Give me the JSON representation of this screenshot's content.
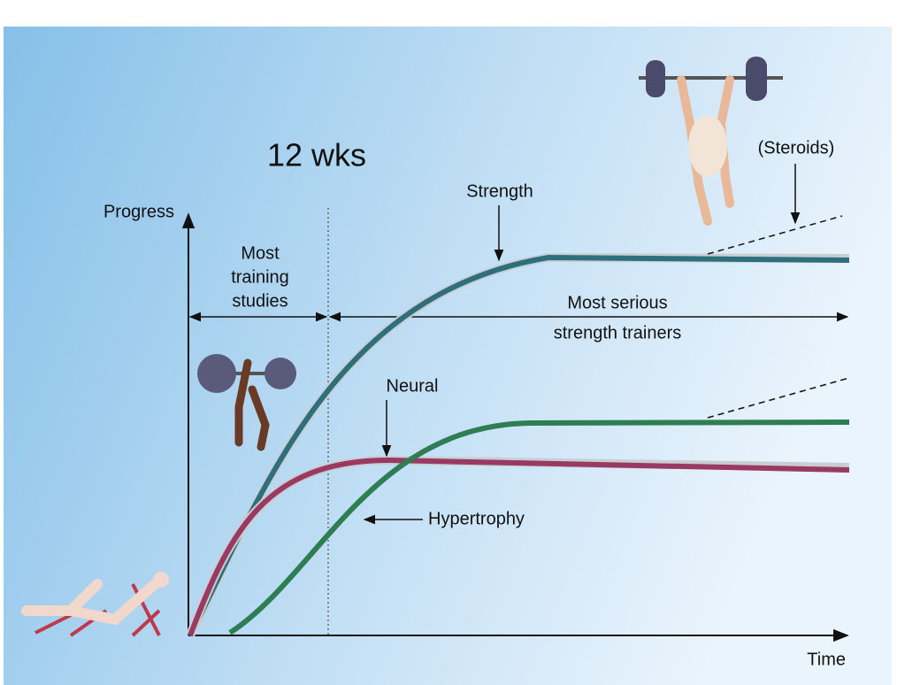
{
  "title": "12 wks",
  "axes": {
    "y_label": "Progress",
    "x_label": "Time"
  },
  "zones": {
    "short": [
      "Most",
      "training",
      "studies"
    ],
    "long": [
      "Most serious",
      "strength trainers"
    ]
  },
  "curves": {
    "strength": "Strength",
    "neural": "Neural",
    "hypertrophy": "Hypertrophy",
    "steroids": "(Steroids)"
  }
}
